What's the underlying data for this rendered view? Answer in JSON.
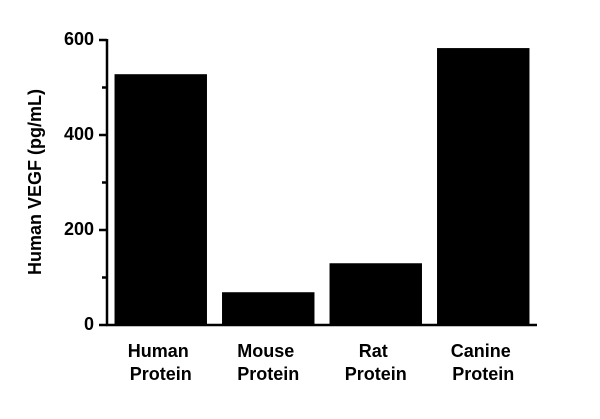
{
  "chart_data": {
    "type": "bar",
    "y_label": "Human VEGF (pg/mL)",
    "categories": [
      "Human Protein",
      "Mouse Protein",
      "Rat Protein",
      "Canine Protein"
    ],
    "values": [
      528,
      69,
      130,
      583
    ],
    "color": "#000000",
    "ylim": [
      0,
      600
    ],
    "yticks": [
      0,
      200,
      400,
      600
    ],
    "yminorticks": [
      100,
      300,
      500
    ],
    "grid": false
  }
}
